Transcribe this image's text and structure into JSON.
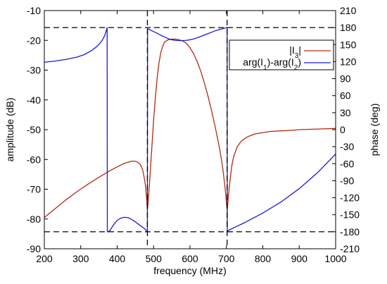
{
  "chart_data": {
    "type": "line",
    "xlabel": "frequency  (MHz)",
    "ylabel": "amplitude (dB)",
    "y2label": "phase (deg)",
    "xlim": [
      200,
      1000
    ],
    "ylim": [
      -90,
      -10
    ],
    "y2lim": [
      -210,
      210
    ],
    "xticks": [
      "200",
      "300",
      "400",
      "500",
      "600",
      "700",
      "800",
      "900",
      "1000"
    ],
    "yticks": [
      "-90",
      "-80",
      "-70",
      "-60",
      "-50",
      "-40",
      "-30",
      "-20",
      "-10"
    ],
    "y2ticks": [
      "-210",
      "-180",
      "-150",
      "-120",
      "-90",
      "-60",
      "-30",
      "0",
      "30",
      "60",
      "90",
      "120",
      "150",
      "180",
      "210"
    ],
    "grid": false,
    "legend_position": "top-right",
    "legend": {
      "amp_label": {
        "pre": "|I",
        "sub": "3",
        "post": "|"
      },
      "phase_label": {
        "p1": "arg(I",
        "s1": "1",
        "p2": ")-arg(I",
        "s2": "2",
        "p3": ")"
      }
    },
    "colors": {
      "amplitude": "#b22a10",
      "phase": "#1a1ad6",
      "reference": "#000000"
    },
    "reference_lines": {
      "vertical_x": [
        483,
        702
      ],
      "horizontal_phase": [
        180,
        -180
      ]
    },
    "series": [
      {
        "axis": "left",
        "color": "#b22a10",
        "x": [
          200,
          230,
          260,
          290,
          320,
          350,
          380,
          400,
          420,
          440,
          450,
          460,
          465,
          470,
          475,
          478,
          481,
          483,
          486,
          490,
          495,
          500,
          505,
          510,
          515,
          520,
          525,
          530,
          540,
          550,
          560,
          570,
          580,
          590,
          600,
          610,
          620,
          630,
          640,
          650,
          660,
          670,
          680,
          685,
          690,
          695,
          698,
          700,
          702,
          705,
          710,
          715,
          720,
          730,
          740,
          750,
          760,
          770,
          780,
          800,
          820,
          850,
          880,
          900,
          950,
          1000
        ],
        "y": [
          -79.5,
          -76.5,
          -73.5,
          -70.8,
          -68.3,
          -66.0,
          -63.8,
          -62.5,
          -61.3,
          -60.6,
          -60.6,
          -61.2,
          -62.0,
          -63.5,
          -66.5,
          -69.0,
          -73.0,
          -77.0,
          -73.0,
          -66.0,
          -56.5,
          -47.0,
          -39.0,
          -32.5,
          -27.5,
          -24.0,
          -22.0,
          -20.6,
          -19.8,
          -19.6,
          -19.6,
          -19.8,
          -20.2,
          -21.0,
          -22.5,
          -24.5,
          -27.2,
          -30.5,
          -34.5,
          -39.0,
          -44.0,
          -49.5,
          -55.5,
          -59.0,
          -63.0,
          -68.0,
          -71.5,
          -74.5,
          -77.0,
          -73.0,
          -67.0,
          -62.0,
          -59.0,
          -55.7,
          -54.0,
          -53.0,
          -52.3,
          -51.8,
          -51.4,
          -51.0,
          -50.6,
          -50.4,
          -50.2,
          -50.0,
          -49.8,
          -49.6
        ]
      },
      {
        "axis": "right",
        "color": "#1a1ad6",
        "x": [
          200,
          230,
          260,
          290,
          310,
          330,
          345,
          355,
          362,
          366,
          369,
          371,
          372,
          372.5,
          373,
          375,
          380,
          390,
          400,
          410,
          420,
          430,
          440,
          450,
          460,
          470,
          478,
          482,
          483,
          483.5,
          485,
          490,
          500,
          510,
          520,
          530,
          540,
          550,
          560,
          570,
          580,
          590,
          600,
          610,
          620,
          630,
          640,
          650,
          660,
          670,
          680,
          690,
          698,
          701,
          702,
          702.5,
          705,
          720,
          750,
          800,
          850,
          900,
          950,
          1000
        ],
        "y": [
          119.0,
          121.0,
          124.0,
          128.0,
          132.5,
          139.5,
          147.0,
          154.0,
          161.0,
          166.5,
          172.0,
          176.5,
          179.0,
          180.0,
          -180.0,
          -180.0,
          -178.0,
          -168.0,
          -160.0,
          -156.0,
          -154.5,
          -155.0,
          -158.5,
          -162.5,
          -167.5,
          -172.0,
          -176.0,
          -179.0,
          -180.0,
          178.0,
          178.0,
          176.0,
          173.0,
          170.0,
          166.5,
          163.5,
          160.5,
          158.5,
          157.5,
          157.0,
          157.0,
          157.5,
          158.5,
          160.0,
          162.0,
          164.5,
          167.0,
          169.5,
          172.0,
          174.5,
          176.5,
          178.0,
          179.5,
          180.0,
          180.0,
          -179.0,
          -178.0,
          -173.0,
          -164.0,
          -147.0,
          -127.5,
          -104.0,
          -76.0,
          -43.0
        ]
      }
    ]
  }
}
